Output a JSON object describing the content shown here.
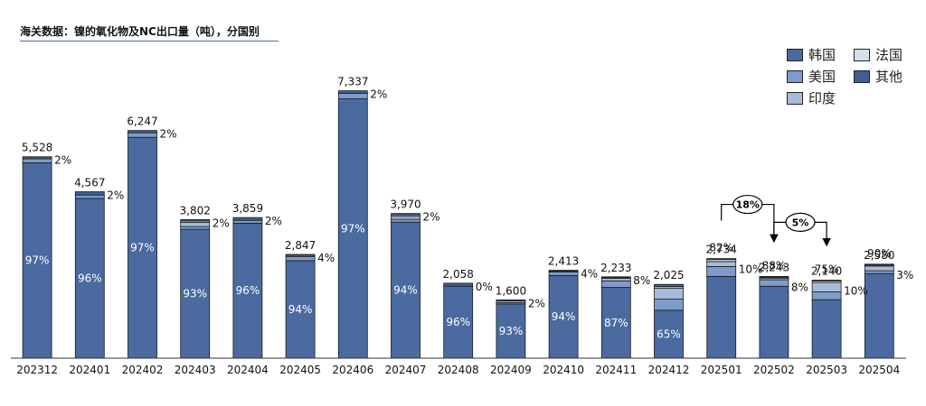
{
  "chart_data": {
    "type": "bar",
    "title": "海关数据：镍的氧化物及NC出口量（吨），分国别",
    "categories": [
      "202312",
      "202401",
      "202402",
      "202403",
      "202404",
      "202405",
      "202406",
      "202407",
      "202408",
      "202409",
      "202410",
      "202411",
      "202412",
      "202501",
      "202502",
      "202503",
      "202504"
    ],
    "totals": [
      5528,
      4567,
      6247,
      3802,
      3859,
      2847,
      7337,
      3970,
      2058,
      1600,
      2413,
      2233,
      2025,
      2734,
      2243,
      2140,
      2580
    ],
    "total_labels": [
      "5,528",
      "4,567",
      "6,247",
      "3,802",
      "3,859",
      "2,847",
      "7,337",
      "3,970",
      "2,058",
      "1,600",
      "2,413",
      "2,233",
      "2,025",
      "2,734",
      "2,243",
      "2,140",
      "2,580"
    ],
    "series": [
      {
        "name": "韩国",
        "shares": [
          97,
          96,
          97,
          93,
          96,
          94,
          97,
          94,
          96,
          93,
          94,
          87,
          65,
          82,
          88,
          75,
          90
        ]
      },
      {
        "name": "美国",
        "shares": [
          2,
          2,
          2,
          2,
          2,
          4,
          2,
          2,
          0,
          2,
          4,
          8,
          15,
          10,
          8,
          10,
          3
        ]
      },
      {
        "name": "印度",
        "shares": [
          0,
          0,
          0,
          3,
          0,
          0,
          0,
          2,
          0,
          3,
          0,
          3,
          15,
          5,
          2,
          12,
          5
        ]
      },
      {
        "name": "法国",
        "shares": [
          0,
          0,
          0,
          1,
          0,
          1,
          0,
          1,
          0,
          0,
          1,
          1,
          2,
          2,
          1,
          2,
          1
        ]
      },
      {
        "name": "其他",
        "shares": [
          1,
          2,
          1,
          1,
          2,
          1,
          1,
          1,
          4,
          2,
          1,
          1,
          3,
          1,
          1,
          1,
          1
        ]
      }
    ],
    "main_labels": [
      "97%",
      "96%",
      "97%",
      "93%",
      "96%",
      "94%",
      "97%",
      "94%",
      "96%",
      "93%",
      "94%",
      "87%",
      "65%",
      "82%",
      "88%",
      "75%",
      "90%"
    ],
    "main_labels_above": [
      false,
      false,
      false,
      false,
      false,
      false,
      false,
      false,
      false,
      false,
      false,
      false,
      false,
      true,
      true,
      true,
      true
    ],
    "side_labels": [
      "2%",
      "2%",
      "2%",
      "2%",
      "2%",
      "4%",
      "2%",
      "2%",
      "0%",
      "2%",
      "4%",
      "8%",
      "",
      "10%",
      "8%",
      "10%",
      "3%"
    ],
    "annotations": [
      {
        "text": "18%",
        "from": "202501",
        "to": "202502"
      },
      {
        "text": "5%",
        "from": "202502",
        "to": "202503"
      }
    ],
    "ylim": [
      0,
      7600
    ],
    "grid": false,
    "legend_position": "top-right"
  },
  "colors": {
    "韩国": "#4a6aa0",
    "美国": "#7d9ccb",
    "印度": "#aabbd9",
    "法国": "#d7deee",
    "其他": "#3d5f95"
  }
}
